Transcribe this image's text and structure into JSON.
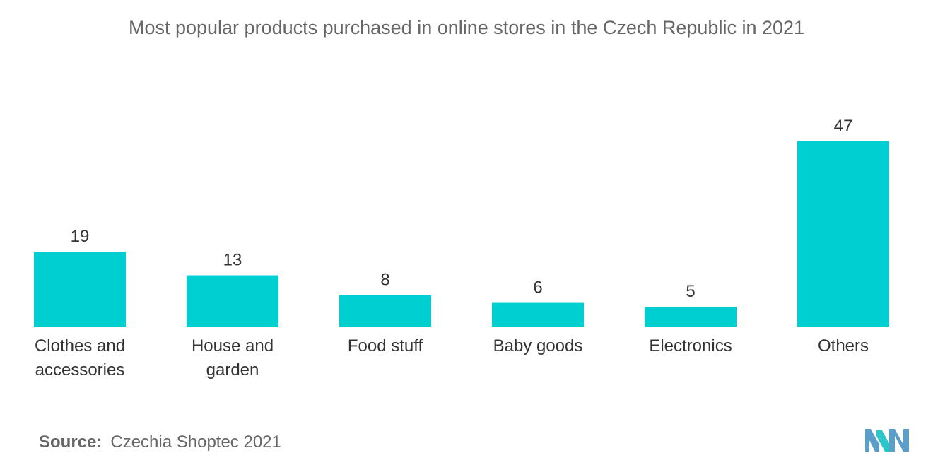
{
  "chart_data": {
    "type": "bar",
    "title": "Most popular products purchased in online stores in the Czech Republic in 2021",
    "categories": [
      "Clothes and accessories",
      "House and garden",
      "Food stuff",
      "Baby goods",
      "Electronics",
      "Others"
    ],
    "category_lines": [
      [
        "Clothes and",
        "accessories"
      ],
      [
        "House and",
        "garden"
      ],
      [
        "Food stuff"
      ],
      [
        "Baby goods"
      ],
      [
        "Electronics"
      ],
      [
        "Others"
      ]
    ],
    "values": [
      19,
      13,
      8,
      6,
      5,
      47
    ],
    "ylim": [
      0,
      47
    ],
    "grid": false,
    "legend": "none",
    "bar_color": "#00CFD1"
  },
  "source": {
    "label": "Source:",
    "text": "Czechia Shoptec 2021"
  },
  "logo": {
    "icon": "mordor-intelligence-logo",
    "colors": [
      "#5A9FC9",
      "#2CC5C9"
    ]
  }
}
